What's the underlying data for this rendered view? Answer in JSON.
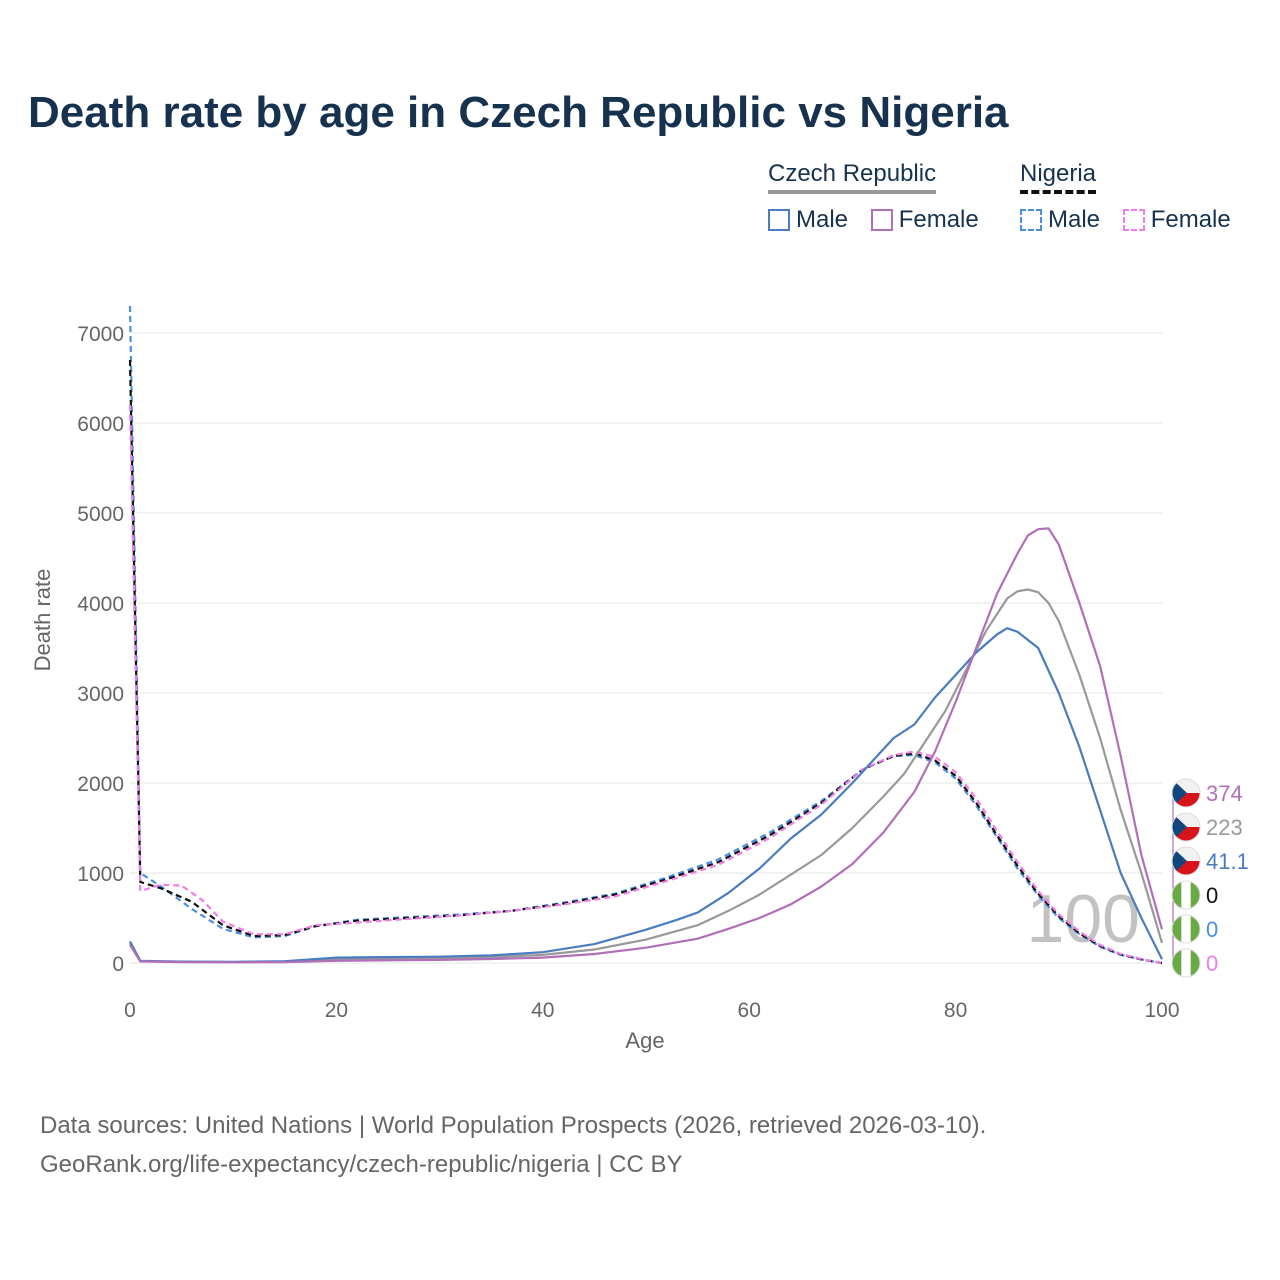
{
  "title": "Death rate by age in Czech Republic vs Nigeria",
  "legend": {
    "groups": [
      {
        "country": "Czech Republic",
        "items": [
          {
            "label": "Male",
            "color": "#4a7cc0",
            "dashed": false
          },
          {
            "label": "Female",
            "color": "#b06fb6",
            "dashed": false
          }
        ]
      },
      {
        "country": "Nigeria",
        "items": [
          {
            "label": "Male",
            "color": "#4a90e2",
            "dashed": true
          },
          {
            "label": "Female",
            "color": "#f07ee8",
            "dashed": true
          }
        ]
      }
    ]
  },
  "chart_data": {
    "type": "line",
    "title": "Death rate by age in Czech Republic vs Nigeria",
    "xlabel": "Age",
    "ylabel": "Death rate",
    "xlim": [
      0,
      100
    ],
    "ylim": [
      0,
      7000
    ],
    "x_ticks": [
      0,
      20,
      40,
      60,
      80,
      100
    ],
    "y_ticks": [
      0,
      1000,
      2000,
      3000,
      4000,
      5000,
      6000,
      7000
    ],
    "watermark": "100",
    "series": [
      {
        "name": "Nigeria Male",
        "color": "#4a90e2",
        "dash": true,
        "points": [
          [
            0,
            7300
          ],
          [
            1,
            1000
          ],
          [
            3,
            850
          ],
          [
            6,
            600
          ],
          [
            9,
            380
          ],
          [
            12,
            285
          ],
          [
            15,
            300
          ],
          [
            18,
            410
          ],
          [
            22,
            480
          ],
          [
            27,
            510
          ],
          [
            32,
            540
          ],
          [
            37,
            580
          ],
          [
            42,
            670
          ],
          [
            47,
            770
          ],
          [
            52,
            950
          ],
          [
            57,
            1150
          ],
          [
            62,
            1450
          ],
          [
            67,
            1800
          ],
          [
            71,
            2150
          ],
          [
            74,
            2300
          ],
          [
            76,
            2310
          ],
          [
            78,
            2230
          ],
          [
            80,
            2050
          ],
          [
            82,
            1750
          ],
          [
            84,
            1400
          ],
          [
            86,
            1050
          ],
          [
            88,
            750
          ],
          [
            90,
            500
          ],
          [
            92,
            320
          ],
          [
            94,
            180
          ],
          [
            96,
            90
          ],
          [
            98,
            40
          ],
          [
            100,
            0
          ]
        ]
      },
      {
        "name": "Nigeria Both",
        "color": "#111111",
        "dash": true,
        "points": [
          [
            0,
            6700
          ],
          [
            1,
            900
          ],
          [
            3,
            830
          ],
          [
            6,
            680
          ],
          [
            9,
            420
          ],
          [
            12,
            300
          ],
          [
            15,
            310
          ],
          [
            18,
            410
          ],
          [
            22,
            470
          ],
          [
            27,
            500
          ],
          [
            32,
            530
          ],
          [
            37,
            580
          ],
          [
            42,
            660
          ],
          [
            47,
            760
          ],
          [
            52,
            930
          ],
          [
            57,
            1120
          ],
          [
            62,
            1420
          ],
          [
            67,
            1780
          ],
          [
            71,
            2150
          ],
          [
            74,
            2300
          ],
          [
            76,
            2330
          ],
          [
            78,
            2250
          ],
          [
            80,
            2080
          ],
          [
            82,
            1780
          ],
          [
            84,
            1420
          ],
          [
            86,
            1080
          ],
          [
            88,
            770
          ],
          [
            90,
            520
          ],
          [
            92,
            330
          ],
          [
            94,
            190
          ],
          [
            96,
            95
          ],
          [
            98,
            40
          ],
          [
            100,
            0
          ]
        ]
      },
      {
        "name": "Nigeria Female",
        "color": "#f07ee8",
        "dash": true,
        "points": [
          [
            0,
            6200
          ],
          [
            1,
            800
          ],
          [
            3,
            870
          ],
          [
            5,
            860
          ],
          [
            7,
            700
          ],
          [
            9,
            460
          ],
          [
            12,
            320
          ],
          [
            15,
            320
          ],
          [
            18,
            420
          ],
          [
            22,
            450
          ],
          [
            27,
            490
          ],
          [
            32,
            530
          ],
          [
            37,
            580
          ],
          [
            42,
            650
          ],
          [
            47,
            740
          ],
          [
            52,
            910
          ],
          [
            57,
            1090
          ],
          [
            62,
            1390
          ],
          [
            67,
            1760
          ],
          [
            71,
            2150
          ],
          [
            74,
            2310
          ],
          [
            76,
            2350
          ],
          [
            78,
            2290
          ],
          [
            80,
            2120
          ],
          [
            82,
            1830
          ],
          [
            84,
            1470
          ],
          [
            86,
            1120
          ],
          [
            88,
            800
          ],
          [
            90,
            540
          ],
          [
            92,
            350
          ],
          [
            94,
            200
          ],
          [
            96,
            100
          ],
          [
            98,
            45
          ],
          [
            100,
            0
          ]
        ]
      },
      {
        "name": "Czech Republic Both",
        "color": "#999999",
        "dash": false,
        "points": [
          [
            0,
            220
          ],
          [
            1,
            20
          ],
          [
            5,
            12
          ],
          [
            10,
            10
          ],
          [
            15,
            15
          ],
          [
            20,
            40
          ],
          [
            25,
            50
          ],
          [
            30,
            55
          ],
          [
            35,
            65
          ],
          [
            40,
            90
          ],
          [
            45,
            150
          ],
          [
            50,
            260
          ],
          [
            55,
            420
          ],
          [
            58,
            580
          ],
          [
            61,
            760
          ],
          [
            64,
            980
          ],
          [
            67,
            1200
          ],
          [
            70,
            1500
          ],
          [
            73,
            1850
          ],
          [
            75,
            2100
          ],
          [
            77,
            2450
          ],
          [
            79,
            2800
          ],
          [
            81,
            3250
          ],
          [
            83,
            3700
          ],
          [
            85,
            4050
          ],
          [
            86,
            4130
          ],
          [
            87,
            4150
          ],
          [
            88,
            4120
          ],
          [
            89,
            4000
          ],
          [
            90,
            3800
          ],
          [
            92,
            3200
          ],
          [
            94,
            2500
          ],
          [
            96,
            1700
          ],
          [
            98,
            1000
          ],
          [
            100,
            223
          ]
        ]
      },
      {
        "name": "Czech Republic Male",
        "color": "#4a7cc0",
        "dash": false,
        "points": [
          [
            0,
            240
          ],
          [
            1,
            25
          ],
          [
            5,
            15
          ],
          [
            10,
            12
          ],
          [
            15,
            20
          ],
          [
            20,
            60
          ],
          [
            25,
            65
          ],
          [
            30,
            70
          ],
          [
            35,
            85
          ],
          [
            40,
            120
          ],
          [
            45,
            210
          ],
          [
            50,
            370
          ],
          [
            53,
            480
          ],
          [
            55,
            560
          ],
          [
            58,
            780
          ],
          [
            61,
            1050
          ],
          [
            64,
            1380
          ],
          [
            67,
            1650
          ],
          [
            70,
            2000
          ],
          [
            72,
            2250
          ],
          [
            74,
            2500
          ],
          [
            76,
            2650
          ],
          [
            78,
            2950
          ],
          [
            80,
            3200
          ],
          [
            82,
            3450
          ],
          [
            84,
            3650
          ],
          [
            85,
            3720
          ],
          [
            86,
            3680
          ],
          [
            88,
            3500
          ],
          [
            90,
            3000
          ],
          [
            92,
            2400
          ],
          [
            94,
            1700
          ],
          [
            96,
            1000
          ],
          [
            98,
            500
          ],
          [
            100,
            41.1
          ]
        ]
      },
      {
        "name": "Czech Republic Female",
        "color": "#b06fb6",
        "dash": false,
        "points": [
          [
            0,
            200
          ],
          [
            1,
            18
          ],
          [
            5,
            10
          ],
          [
            10,
            8
          ],
          [
            15,
            10
          ],
          [
            20,
            25
          ],
          [
            25,
            30
          ],
          [
            30,
            35
          ],
          [
            35,
            45
          ],
          [
            40,
            60
          ],
          [
            45,
            100
          ],
          [
            50,
            170
          ],
          [
            55,
            270
          ],
          [
            58,
            380
          ],
          [
            61,
            500
          ],
          [
            64,
            650
          ],
          [
            67,
            850
          ],
          [
            70,
            1100
          ],
          [
            73,
            1450
          ],
          [
            76,
            1900
          ],
          [
            78,
            2350
          ],
          [
            80,
            2900
          ],
          [
            82,
            3500
          ],
          [
            84,
            4100
          ],
          [
            86,
            4550
          ],
          [
            87,
            4750
          ],
          [
            88,
            4820
          ],
          [
            89,
            4830
          ],
          [
            90,
            4650
          ],
          [
            92,
            4000
          ],
          [
            94,
            3300
          ],
          [
            96,
            2300
          ],
          [
            98,
            1200
          ],
          [
            100,
            374
          ]
        ]
      }
    ],
    "end_labels": [
      {
        "country": "Czech Republic",
        "value": "374",
        "color": "#b06fb6"
      },
      {
        "country": "Czech Republic",
        "value": "223",
        "color": "#999999"
      },
      {
        "country": "Czech Republic",
        "value": "41.1",
        "color": "#4a7cc0"
      },
      {
        "country": "Nigeria",
        "value": "0",
        "color": "#111111"
      },
      {
        "country": "Nigeria",
        "value": "0",
        "color": "#4a90e2"
      },
      {
        "country": "Nigeria",
        "value": "0",
        "color": "#f07ee8"
      }
    ]
  },
  "footer": {
    "line1": "Data sources: United Nations | World Population Prospects (2026, retrieved 2026-03-10).",
    "line2": "GeoRank.org/life-expectancy/czech-republic/nigeria | CC BY"
  }
}
